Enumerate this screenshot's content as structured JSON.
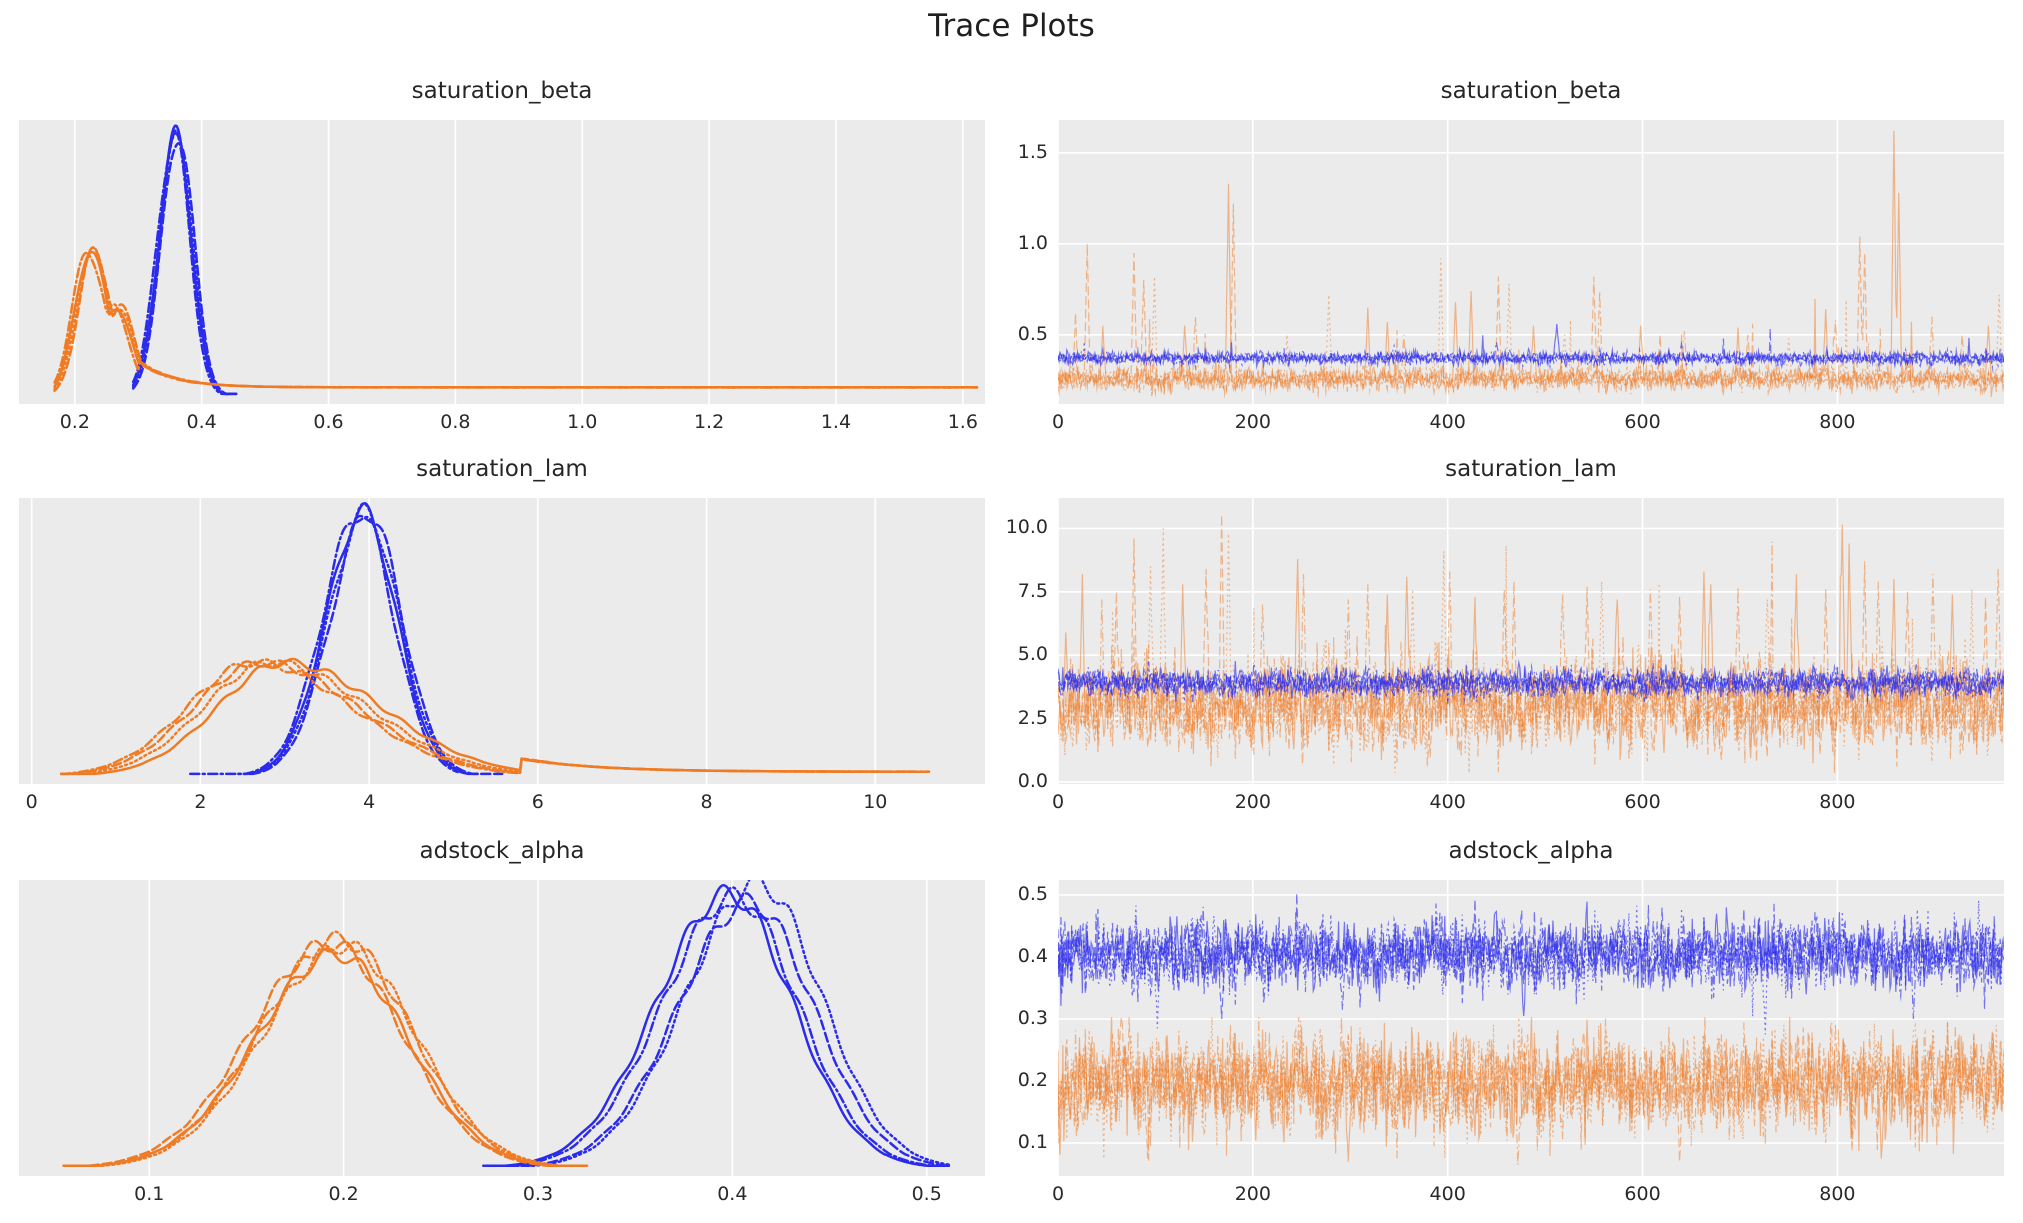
{
  "figure": {
    "title": "Trace Plots"
  },
  "style": {
    "blue": "#2b2bec",
    "orange": "#ef7c25",
    "plot_bg": "#ebebeb",
    "grid_color": "#ffffff",
    "text_color": "#262626",
    "trace_alpha_blue": 0.62,
    "trace_alpha_orange": 0.5
  },
  "chart_data": [
    {
      "type": "kde",
      "title": "saturation_beta",
      "xlim": [
        0.112,
        1.635
      ],
      "xticks": {
        "values": [
          0.2,
          0.4,
          0.6,
          0.8,
          1.0,
          1.2,
          1.4,
          1.6
        ],
        "labels": [
          "0.2",
          "0.4",
          "0.6",
          "0.8",
          "1.0",
          "1.2",
          "1.4",
          "1.6"
        ]
      },
      "series": [
        {
          "color": "blue",
          "range": [
            0.292,
            0.455
          ],
          "components": [
            {
              "p": 0.36,
              "sl": 0.027,
              "sr": 0.024,
              "h": 1.0
            }
          ],
          "chain_shift": [
            0,
            0.004,
            -0.003,
            0.002
          ]
        },
        {
          "color": "orange",
          "range": [
            0.168,
            1.623
          ],
          "components": [
            {
              "p": 0.224,
              "sl": 0.024,
              "sr": 0.028,
              "h": 0.555
            },
            {
              "p": 0.266,
              "sl": 0.024,
              "sr": 0.024,
              "h": 0.34
            }
          ],
          "tail": {
            "from": 0.3,
            "level": 0.033,
            "bump": 0.1,
            "decay": 0.055
          },
          "chain_shift": [
            0,
            0.006,
            -0.004,
            0.003
          ]
        }
      ]
    },
    {
      "type": "trace",
      "title": "saturation_beta",
      "n": 972,
      "xlim": [
        0,
        971
      ],
      "xticks": {
        "values": [
          0,
          200,
          400,
          600,
          800
        ],
        "labels": [
          "0",
          "200",
          "400",
          "600",
          "800"
        ]
      },
      "ylim": [
        0.12,
        1.68
      ],
      "yticks": {
        "values": [
          0.5,
          1.0,
          1.5
        ],
        "labels": [
          "0.5",
          "1.0",
          "1.5"
        ]
      },
      "series": [
        {
          "color": "orange",
          "mean": 0.258,
          "sd": 0.03,
          "rho": 0.25,
          "clip": [
            0.16,
            0.62
          ],
          "burst": {
            "p": 0.012,
            "scale": 0.1
          },
          "spikes": [
            [
              18,
              0.62,
              1
            ],
            [
              30,
              1.0,
              1
            ],
            [
              46,
              0.55,
              0
            ],
            [
              78,
              0.95,
              1
            ],
            [
              88,
              0.8,
              1
            ],
            [
              99,
              0.82,
              3
            ],
            [
              130,
              0.55,
              0
            ],
            [
              141,
              0.6,
              2
            ],
            [
              175,
              1.33,
              0
            ],
            [
              180,
              1.22,
              1
            ],
            [
              235,
              0.5,
              3
            ],
            [
              278,
              0.72,
              3
            ],
            [
              318,
              0.65,
              0
            ],
            [
              338,
              0.57,
              0
            ],
            [
              355,
              0.5,
              2
            ],
            [
              393,
              0.92,
              3
            ],
            [
              408,
              0.68,
              0
            ],
            [
              424,
              0.74,
              0
            ],
            [
              452,
              0.82,
              1
            ],
            [
              463,
              0.78,
              3
            ],
            [
              488,
              0.55,
              0
            ],
            [
              520,
              0.5,
              3
            ],
            [
              550,
              0.82,
              1
            ],
            [
              556,
              0.74,
              2
            ],
            [
              598,
              0.55,
              0
            ],
            [
              618,
              0.5,
              1
            ],
            [
              643,
              0.52,
              2
            ],
            [
              698,
              0.54,
              0
            ],
            [
              708,
              0.5,
              1
            ],
            [
              750,
              0.48,
              3
            ],
            [
              788,
              0.64,
              0
            ],
            [
              798,
              0.58,
              2
            ],
            [
              823,
              1.04,
              1
            ],
            [
              828,
              0.95,
              1
            ],
            [
              858,
              1.62,
              0
            ],
            [
              863,
              1.28,
              0
            ],
            [
              897,
              0.6,
              2
            ],
            [
              928,
              0.5,
              1
            ],
            [
              955,
              0.55,
              0
            ],
            [
              966,
              0.72,
              3
            ]
          ]
        },
        {
          "color": "blue",
          "mean": 0.372,
          "sd": 0.016,
          "rho": 0.25,
          "clip": [
            0.3,
            0.62
          ],
          "burst": {
            "p": 0.004,
            "scale": 0.06
          },
          "spikes": [
            [
              345,
              0.44,
              3
            ],
            [
              450,
              0.46,
              2
            ],
            [
              512,
              0.56,
              0
            ],
            [
              640,
              0.45,
              1
            ]
          ]
        }
      ]
    },
    {
      "type": "kde",
      "title": "saturation_lam",
      "xlim": [
        -0.15,
        11.3
      ],
      "xticks": {
        "values": [
          0,
          2,
          4,
          6,
          8,
          10
        ],
        "labels": [
          "0",
          "2",
          "4",
          "6",
          "8",
          "10"
        ]
      },
      "series": [
        {
          "color": "blue",
          "chain_range": [
            [
              2.52,
              5.3
            ],
            [
              2.6,
              5.58
            ],
            [
              1.88,
              5.05
            ],
            [
              2.45,
              5.2
            ]
          ],
          "range": [
            2.45,
            5.6
          ],
          "components": [
            {
              "p": 3.93,
              "sl": 0.44,
              "sr": 0.4,
              "h": 1.0
            }
          ],
          "chain_shift": [
            0,
            0.06,
            -0.04,
            0.03
          ]
        },
        {
          "color": "orange",
          "range": [
            0.35,
            10.65
          ],
          "components": [
            {
              "p": 2.72,
              "sl": 0.8,
              "sr": 1.15,
              "h": 0.43
            }
          ],
          "tail": {
            "from": 5.8,
            "level": 0.016,
            "bump": 0.05,
            "decay": 0.9
          },
          "chain_shift": [
            0.28,
            0,
            -0.08,
            0.12
          ]
        }
      ]
    },
    {
      "type": "trace",
      "title": "saturation_lam",
      "n": 972,
      "xlim": [
        0,
        971
      ],
      "xticks": {
        "values": [
          0,
          200,
          400,
          600,
          800
        ],
        "labels": [
          "0",
          "200",
          "400",
          "600",
          "800"
        ]
      },
      "ylim": [
        -0.08,
        11.2
      ],
      "yticks": {
        "values": [
          0.0,
          2.5,
          5.0,
          7.5,
          10.0
        ],
        "labels": [
          "0.0",
          "2.5",
          "5.0",
          "7.5",
          "10.0"
        ]
      },
      "series": [
        {
          "color": "orange",
          "mean": 3.0,
          "sd": 0.85,
          "rho": 0.3,
          "clip": [
            0.35,
            6.6
          ],
          "burst": {
            "p": 0.025,
            "scale": 1.2
          },
          "spikes": [
            [
              8,
              5.9,
              0
            ],
            [
              25,
              8.2,
              0
            ],
            [
              45,
              7.2,
              2
            ],
            [
              60,
              7.5,
              1
            ],
            [
              78,
              9.6,
              1
            ],
            [
              95,
              8.5,
              3
            ],
            [
              108,
              10.0,
              3
            ],
            [
              128,
              7.8,
              0
            ],
            [
              152,
              8.4,
              1
            ],
            [
              168,
              10.55,
              1
            ],
            [
              175,
              9.8,
              3
            ],
            [
              210,
              7.0,
              2
            ],
            [
              246,
              8.8,
              0
            ],
            [
              252,
              8.2,
              2
            ],
            [
              298,
              7.2,
              2
            ],
            [
              318,
              7.8,
              2
            ],
            [
              338,
              7.4,
              0
            ],
            [
              358,
              8.1,
              0
            ],
            [
              364,
              7.6,
              3
            ],
            [
              396,
              9.1,
              3
            ],
            [
              402,
              8.3,
              2
            ],
            [
              428,
              7.3,
              0
            ],
            [
              458,
              7.6,
              1
            ],
            [
              468,
              7.9,
              1
            ],
            [
              518,
              7.4,
              2
            ],
            [
              543,
              7.7,
              1
            ],
            [
              558,
              7.9,
              3
            ],
            [
              574,
              7.2,
              0
            ],
            [
              608,
              7.6,
              2
            ],
            [
              638,
              7.3,
              1
            ],
            [
              663,
              8.3,
              0
            ],
            [
              670,
              7.8,
              0
            ],
            [
              698,
              7.7,
              2
            ],
            [
              728,
              7.2,
              3
            ],
            [
              758,
              8.2,
              0
            ],
            [
              788,
              7.6,
              1
            ],
            [
              805,
              10.15,
              0
            ],
            [
              812,
              9.4,
              0
            ],
            [
              828,
              8.7,
              1
            ],
            [
              842,
              7.9,
              2
            ],
            [
              858,
              8.0,
              0
            ],
            [
              872,
              7.5,
              1
            ],
            [
              898,
              8.2,
              2
            ],
            [
              918,
              7.4,
              0
            ],
            [
              938,
              7.6,
              3
            ],
            [
              952,
              7.3,
              1
            ],
            [
              965,
              8.4,
              2
            ]
          ]
        },
        {
          "color": "blue",
          "mean": 3.92,
          "sd": 0.26,
          "rho": 0.3,
          "clip": [
            2.7,
            5.2
          ],
          "spikes": []
        }
      ]
    },
    {
      "type": "kde",
      "title": "adstock_alpha",
      "xlim": [
        0.033,
        0.53
      ],
      "xticks": {
        "values": [
          0.1,
          0.2,
          0.3,
          0.4,
          0.5
        ],
        "labels": [
          "0.1",
          "0.2",
          "0.3",
          "0.4",
          "0.5"
        ]
      },
      "series": [
        {
          "color": "blue",
          "range": [
            0.272,
            0.512
          ],
          "components": [
            {
              "p": 0.403,
              "sl": 0.037,
              "sr": 0.033,
              "h": 1.0
            }
          ],
          "chain_shift": [
            -0.005,
            0.006,
            -0.002,
            0.01
          ],
          "chain_h": [
            1.0,
            0.97,
            0.99,
            1.04
          ]
        },
        {
          "color": "orange",
          "range": [
            0.056,
            0.326
          ],
          "components": [
            {
              "p": 0.196,
              "sl": 0.041,
              "sr": 0.037,
              "h": 0.78
            }
          ],
          "chain_shift": [
            0,
            -0.003,
            0.002,
            0.004
          ],
          "chain_h": [
            1.0,
            1.05,
            1.07,
            1.04
          ]
        }
      ]
    },
    {
      "type": "trace",
      "title": "adstock_alpha",
      "n": 972,
      "xlim": [
        0,
        971
      ],
      "xticks": {
        "values": [
          0,
          200,
          400,
          600,
          800
        ],
        "labels": [
          "0",
          "200",
          "400",
          "600",
          "800"
        ]
      },
      "ylim": [
        0.047,
        0.524
      ],
      "yticks": {
        "values": [
          0.1,
          0.2,
          0.3,
          0.4,
          0.5
        ],
        "labels": [
          "0.1",
          "0.2",
          "0.3",
          "0.4",
          "0.5"
        ]
      },
      "series": [
        {
          "color": "orange",
          "mean": 0.197,
          "sd": 0.04,
          "rho": 0.2,
          "clip": [
            0.068,
            0.303
          ],
          "spikes": [
            [
              92,
              0.075,
              1
            ],
            [
              298,
              0.07,
              0
            ],
            [
              472,
              0.065,
              2
            ],
            [
              638,
              0.07,
              1
            ],
            [
              845,
              0.075,
              0
            ]
          ]
        },
        {
          "color": "blue",
          "mean": 0.405,
          "sd": 0.027,
          "rho": 0.2,
          "clip": [
            0.3,
            0.503
          ],
          "spikes": [
            [
              102,
              0.285,
              3
            ],
            [
              168,
              0.3,
              1
            ],
            [
              292,
              0.315,
              2
            ],
            [
              478,
              0.305,
              0
            ],
            [
              726,
              0.275,
              3
            ],
            [
              878,
              0.3,
              2
            ]
          ]
        }
      ]
    }
  ]
}
